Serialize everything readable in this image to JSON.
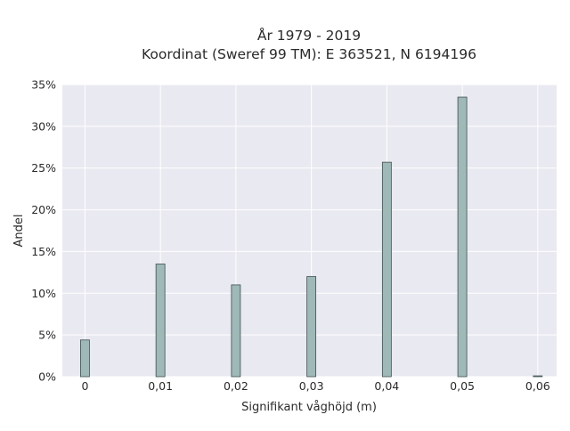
{
  "chart_data": {
    "type": "bar",
    "title": "År 1979 - 2019",
    "subtitle": "Koordinat (Sweref 99 TM): E 363521, N 6194196",
    "xlabel": "Signifikant våghöjd (m)",
    "ylabel": "Andel",
    "x": [
      0,
      0.01,
      0.02,
      0.03,
      0.04,
      0.05,
      0.06
    ],
    "values": [
      4.4,
      13.5,
      11.0,
      12.0,
      25.7,
      33.5,
      0.1
    ],
    "xlim": [
      -0.003,
      0.0625
    ],
    "ylim": [
      0,
      35
    ],
    "x_ticks": [
      0,
      0.01,
      0.02,
      0.03,
      0.04,
      0.05,
      0.06
    ],
    "x_tick_labels": [
      "0",
      "0,01",
      "0,02",
      "0,03",
      "0,04",
      "0,05",
      "0,06"
    ],
    "y_ticks": [
      0,
      5,
      10,
      15,
      20,
      25,
      30,
      35
    ],
    "y_tick_labels": [
      "0%",
      "5%",
      "10%",
      "15%",
      "20%",
      "25%",
      "30%",
      "35%"
    ],
    "grid": true,
    "colors": {
      "bar_fill": "#9fb8b8",
      "bar_stroke": "#3f4f4f",
      "plot_background": "#e9e9f1",
      "grid": "#ffffff"
    }
  }
}
